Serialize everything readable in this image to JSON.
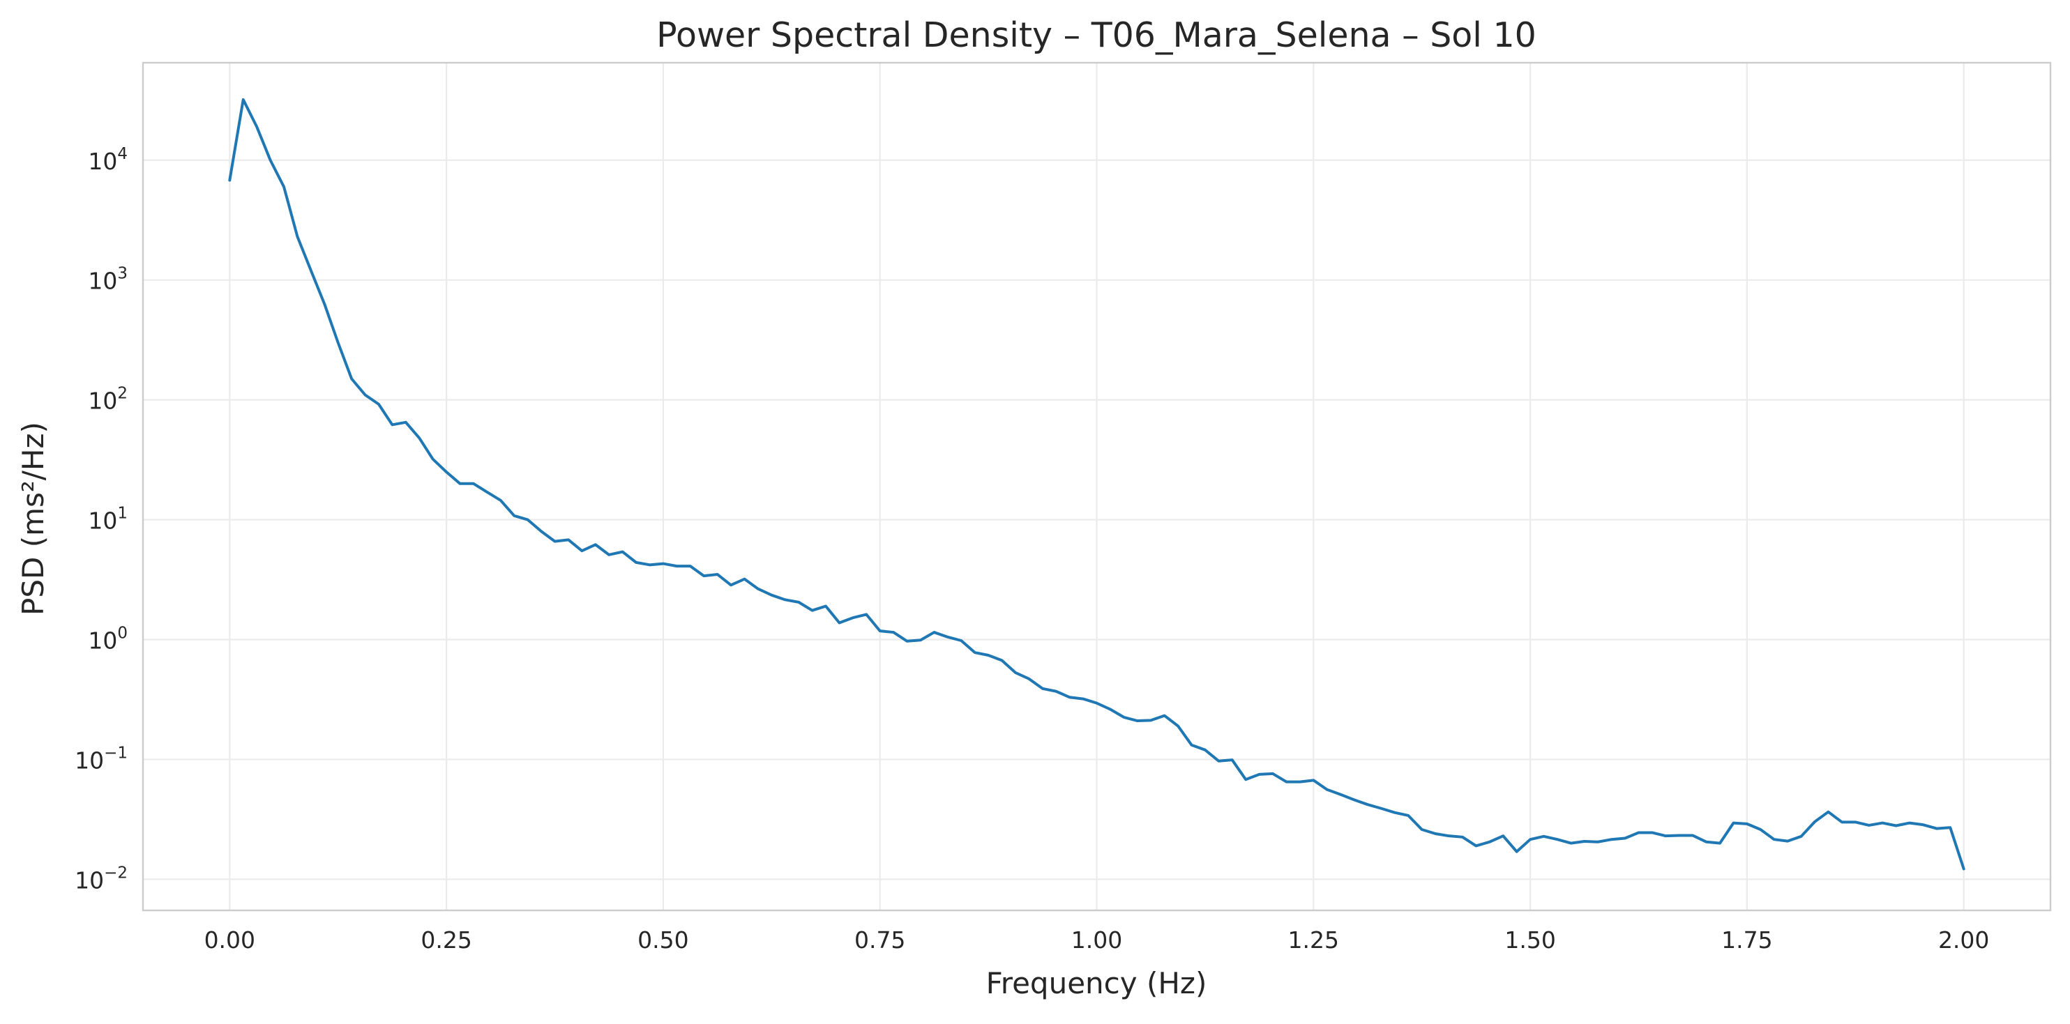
{
  "chart_data": {
    "type": "line",
    "title": "Power Spectral Density – T06_Mara_Selena – Sol 10",
    "xlabel": "Frequency (Hz)",
    "ylabel": "PSD (ms²/Hz)",
    "xlim": [
      -0.1,
      2.1
    ],
    "ylim": [
      0.0055,
      65000
    ],
    "yscale": "log",
    "grid": true,
    "x_ticks": [
      {
        "value": 0.0,
        "label": "0.00"
      },
      {
        "value": 0.25,
        "label": "0.25"
      },
      {
        "value": 0.5,
        "label": "0.50"
      },
      {
        "value": 0.75,
        "label": "0.75"
      },
      {
        "value": 1.0,
        "label": "1.00"
      },
      {
        "value": 1.25,
        "label": "1.25"
      },
      {
        "value": 1.5,
        "label": "1.50"
      },
      {
        "value": 1.75,
        "label": "1.75"
      },
      {
        "value": 2.0,
        "label": "2.00"
      }
    ],
    "y_ticks": [
      {
        "value": 0.01,
        "base": "10",
        "exp": "−2"
      },
      {
        "value": 0.1,
        "base": "10",
        "exp": "−1"
      },
      {
        "value": 1,
        "base": "10",
        "exp": "0"
      },
      {
        "value": 10,
        "base": "10",
        "exp": "1"
      },
      {
        "value": 100,
        "base": "10",
        "exp": "2"
      },
      {
        "value": 1000,
        "base": "10",
        "exp": "3"
      },
      {
        "value": 10000,
        "base": "10",
        "exp": "4"
      }
    ],
    "series": [
      {
        "color": "#1f77b4",
        "x": [
          0.0,
          0.015625,
          0.03125,
          0.046875,
          0.0625,
          0.078125,
          0.09375,
          0.109375,
          0.125,
          0.140625,
          0.15625,
          0.171875,
          0.1875,
          0.203125,
          0.21875,
          0.234375,
          0.25,
          0.265625,
          0.28125,
          0.296875,
          0.3125,
          0.328125,
          0.34375,
          0.359375,
          0.375,
          0.390625,
          0.40625,
          0.421875,
          0.4375,
          0.453125,
          0.46875,
          0.484375,
          0.5,
          0.515625,
          0.53125,
          0.546875,
          0.5625,
          0.578125,
          0.59375,
          0.609375,
          0.625,
          0.640625,
          0.65625,
          0.671875,
          0.6875,
          0.703125,
          0.71875,
          0.734375,
          0.75,
          0.765625,
          0.78125,
          0.796875,
          0.8125,
          0.828125,
          0.84375,
          0.859375,
          0.875,
          0.890625,
          0.90625,
          0.921875,
          0.9375,
          0.953125,
          0.96875,
          0.984375,
          1.0,
          1.015625,
          1.03125,
          1.046875,
          1.0625,
          1.078125,
          1.09375,
          1.109375,
          1.125,
          1.140625,
          1.15625,
          1.171875,
          1.1875,
          1.203125,
          1.21875,
          1.234375,
          1.25,
          1.265625,
          1.28125,
          1.296875,
          1.3125,
          1.328125,
          1.34375,
          1.359375,
          1.375,
          1.390625,
          1.40625,
          1.421875,
          1.4375,
          1.453125,
          1.46875,
          1.484375,
          1.5,
          1.515625,
          1.53125,
          1.546875,
          1.5625,
          1.578125,
          1.59375,
          1.609375,
          1.625,
          1.640625,
          1.65625,
          1.671875,
          1.6875,
          1.703125,
          1.71875,
          1.734375,
          1.75,
          1.765625,
          1.78125,
          1.796875,
          1.8125,
          1.828125,
          1.84375,
          1.859375,
          1.875,
          1.890625,
          1.90625,
          1.921875,
          1.9375,
          1.953125,
          1.96875,
          1.984375,
          2.0
        ],
        "y": [
          6800,
          32000,
          19000,
          10000,
          6000,
          2300,
          1200,
          630,
          300,
          150,
          110,
          92,
          62,
          65,
          48,
          32,
          25,
          20,
          20,
          17,
          14.5,
          10.8,
          10,
          8,
          6.6,
          6.8,
          5.5,
          6.2,
          5.1,
          5.4,
          4.4,
          4.2,
          4.3,
          4.1,
          4.1,
          3.4,
          3.5,
          2.85,
          3.2,
          2.65,
          2.35,
          2.15,
          2.05,
          1.75,
          1.9,
          1.38,
          1.52,
          1.62,
          1.18,
          1.15,
          0.97,
          0.99,
          1.15,
          1.05,
          0.98,
          0.78,
          0.74,
          0.67,
          0.53,
          0.47,
          0.39,
          0.37,
          0.33,
          0.32,
          0.295,
          0.262,
          0.225,
          0.21,
          0.212,
          0.232,
          0.19,
          0.132,
          0.12,
          0.097,
          0.099,
          0.068,
          0.075,
          0.076,
          0.065,
          0.065,
          0.067,
          0.056,
          0.051,
          0.046,
          0.042,
          0.039,
          0.036,
          0.034,
          0.026,
          0.024,
          0.023,
          0.0225,
          0.019,
          0.0205,
          0.023,
          0.017,
          0.0215,
          0.0228,
          0.0215,
          0.02,
          0.0207,
          0.0205,
          0.0215,
          0.022,
          0.0245,
          0.0245,
          0.023,
          0.0232,
          0.0232,
          0.0205,
          0.02,
          0.0295,
          0.029,
          0.026,
          0.0215,
          0.0208,
          0.0228,
          0.0302,
          0.0365,
          0.03,
          0.03,
          0.0282,
          0.0295,
          0.028,
          0.0295,
          0.0285,
          0.0265,
          0.027,
          0.0122
        ]
      }
    ]
  }
}
